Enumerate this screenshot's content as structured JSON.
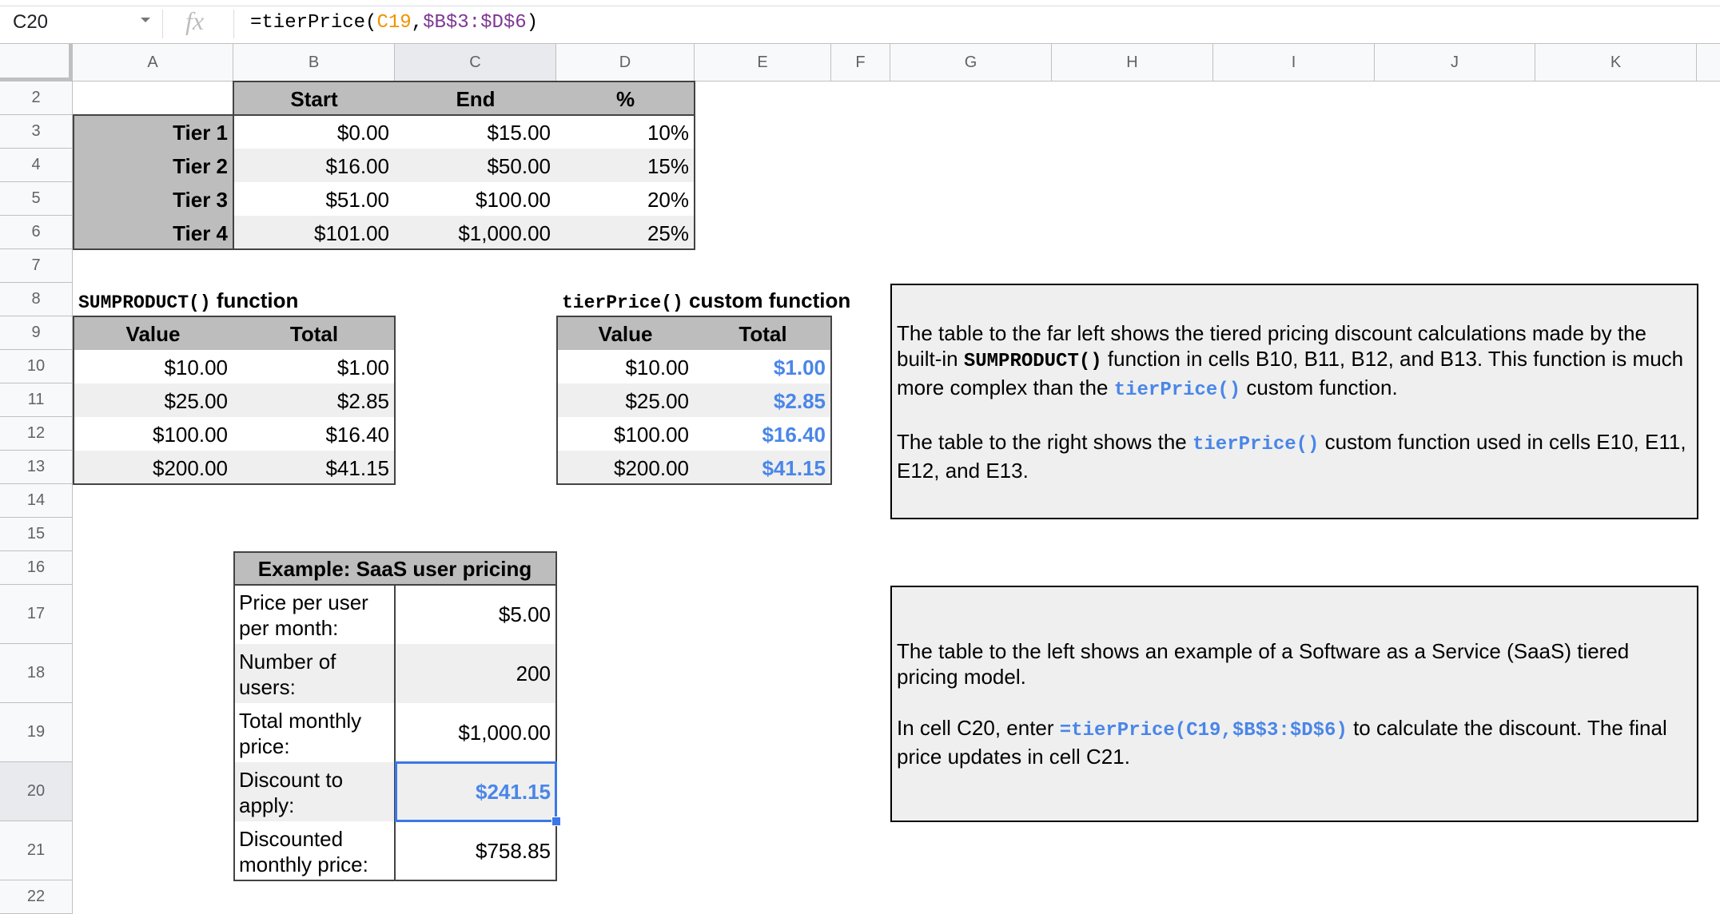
{
  "formula_bar": {
    "name_box": "C20",
    "fx_icon": "fx",
    "formula": {
      "prefix": "=tierPrice(",
      "ref1": "C19",
      "sep": ",",
      "ref2": "$B$3:$D$6",
      "suffix": ")"
    },
    "ref_colors": {
      "ref1": "#f09300",
      "ref2": "#7e3794"
    }
  },
  "columns": [
    "A",
    "B",
    "C",
    "D",
    "E",
    "F",
    "G",
    "H",
    "I",
    "J",
    "K"
  ],
  "rows": [
    "2",
    "3",
    "4",
    "5",
    "6",
    "7",
    "8",
    "9",
    "10",
    "11",
    "12",
    "13",
    "14",
    "15",
    "16",
    "17",
    "18",
    "19",
    "20",
    "21",
    "22"
  ],
  "selected_cell": "C20",
  "tier_table": {
    "headers": {
      "start": "Start",
      "end": "End",
      "pct": "%"
    },
    "rows": [
      {
        "tier": "Tier 1",
        "start": "$0.00",
        "end": "$15.00",
        "pct": "10%"
      },
      {
        "tier": "Tier 2",
        "start": "$16.00",
        "end": "$50.00",
        "pct": "15%"
      },
      {
        "tier": "Tier 3",
        "start": "$51.00",
        "end": "$100.00",
        "pct": "20%"
      },
      {
        "tier": "Tier 4",
        "start": "$101.00",
        "end": "$1,000.00",
        "pct": "25%"
      }
    ]
  },
  "sumproduct_table": {
    "title_code": "SUMPRODUCT()",
    "title_text": " function",
    "headers": {
      "value": "Value",
      "total": "Total"
    },
    "rows": [
      {
        "value": "$10.00",
        "total": "$1.00"
      },
      {
        "value": "$25.00",
        "total": "$2.85"
      },
      {
        "value": "$100.00",
        "total": "$16.40"
      },
      {
        "value": "$200.00",
        "total": "$41.15"
      }
    ]
  },
  "tierprice_table": {
    "title_code": "tierPrice()",
    "title_text": " custom function",
    "headers": {
      "value": "Value",
      "total": "Total"
    },
    "rows": [
      {
        "value": "$10.00",
        "total": "$1.00"
      },
      {
        "value": "$25.00",
        "total": "$2.85"
      },
      {
        "value": "$100.00",
        "total": "$16.40"
      },
      {
        "value": "$200.00",
        "total": "$41.15"
      }
    ],
    "total_color": "#4a86e8"
  },
  "saas_table": {
    "title": "Example: SaaS user pricing",
    "rows": [
      {
        "label": "Price per user per month:",
        "value": "$5.00"
      },
      {
        "label": "Number of users:",
        "value": "200"
      },
      {
        "label": "Total monthly price:",
        "value": "$1,000.00"
      },
      {
        "label": "Discount to apply:",
        "value": "$241.15"
      },
      {
        "label": "Discounted monthly price:",
        "value": "$758.85"
      }
    ]
  },
  "text_box_1": {
    "p1": [
      "The table to the far left shows the tiered pricing discount calculations made by the built-in ",
      "SUMPRODUCT()",
      " function in cells B10, B11, B12, and B13. This function is much more complex than the ",
      "tierPrice()",
      " custom function."
    ],
    "p2": [
      "The table to the right shows the ",
      "tierPrice()",
      " custom function used in cells E10, E11, E12, and E13."
    ]
  },
  "text_box_2": {
    "p1": [
      "The table to the left shows an example of a Software as a Service (SaaS) tiered pricing model."
    ],
    "p2": [
      "In cell C20, enter ",
      "=tierPrice(C19,$B$3:$D$6)",
      " to calculate the discount. The final price updates in cell C21."
    ]
  },
  "colors": {
    "header_gray": "#bdbdbd",
    "alt_row": "#efefef",
    "selection": "#3b78e7",
    "accent_blue": "#4a86e8"
  }
}
